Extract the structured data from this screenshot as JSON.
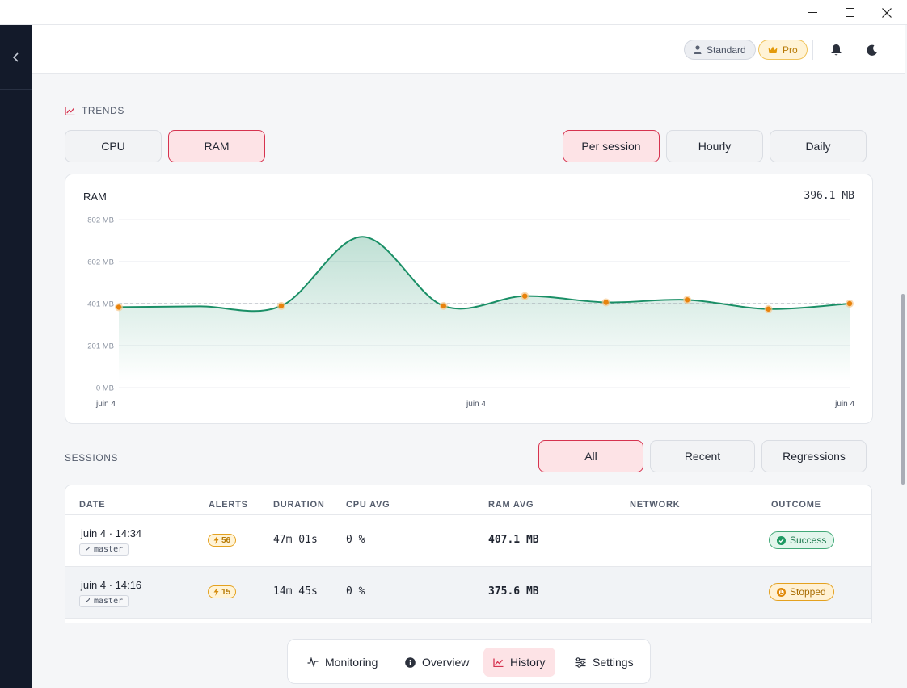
{
  "topbar": {
    "standard_label": "Standard",
    "pro_label": "Pro"
  },
  "trends": {
    "section_label": "TRENDS",
    "metric_tabs": [
      "CPU",
      "RAM"
    ],
    "metric_active": "RAM",
    "period_tabs": [
      "Per session",
      "Hourly",
      "Daily"
    ],
    "period_active": "Per session"
  },
  "chart": {
    "title": "RAM",
    "current_value": "396.1 MB"
  },
  "chart_data": {
    "type": "area",
    "title": "RAM",
    "y_ticks": [
      "802 MB",
      "602 MB",
      "401 MB",
      "201 MB",
      "0 MB"
    ],
    "y_tick_values": [
      802,
      602,
      401,
      201,
      0
    ],
    "ylim": [
      0,
      802
    ],
    "x_ticks": [
      "juin 4",
      "juin 4",
      "juin 4"
    ],
    "reference_line": 401,
    "points": [
      {
        "value": 384,
        "marker": true
      },
      {
        "value": 388,
        "marker": false
      },
      {
        "value": 390,
        "marker": true
      },
      {
        "value": 720,
        "marker": false
      },
      {
        "value": 390,
        "marker": true
      },
      {
        "value": 437,
        "marker": true
      },
      {
        "value": 407,
        "marker": true
      },
      {
        "value": 419,
        "marker": true
      },
      {
        "value": 375,
        "marker": true
      },
      {
        "value": 401,
        "marker": true
      }
    ],
    "line_color": "#1a8f66",
    "marker_color": "#e8820c",
    "grid": true
  },
  "sessions": {
    "section_label": "SESSIONS",
    "filters": [
      "All",
      "Recent",
      "Regressions"
    ],
    "filter_active": "All",
    "columns": [
      "DATE",
      "ALERTS",
      "DURATION",
      "CPU AVG",
      "RAM AVG",
      "NETWORK",
      "OUTCOME"
    ],
    "rows": [
      {
        "date": "juin 4 · 14:34",
        "branch": "master",
        "alerts": "56",
        "duration": "47m 01s",
        "cpu": "0 %",
        "ram": "407.1 MB",
        "network": "",
        "outcome": "Success"
      },
      {
        "date": "juin 4 · 14:16",
        "branch": "master",
        "alerts": "15",
        "duration": "14m 45s",
        "cpu": "0 %",
        "ram": "375.6 MB",
        "network": "",
        "outcome": "Stopped"
      }
    ]
  },
  "nav": {
    "items": [
      "Monitoring",
      "Overview",
      "History",
      "Settings"
    ],
    "active": "History"
  },
  "colors": {
    "accent": "#d6334f",
    "accent_bg": "#fde3e6",
    "sidebar": "#131a2a",
    "success": "#1f7a4f",
    "warning": "#b77a06"
  }
}
